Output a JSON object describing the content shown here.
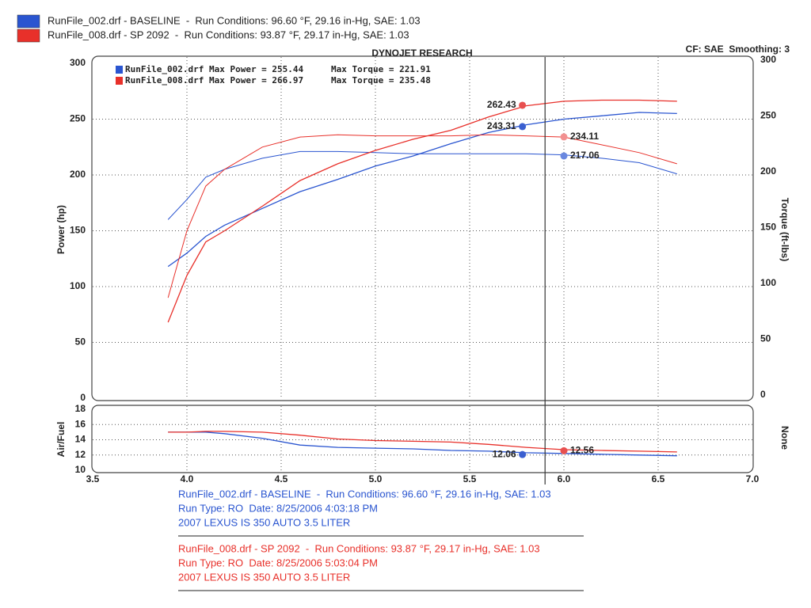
{
  "chart_data": [
    {
      "type": "dyno",
      "title": "DYNOJET RESEARCH",
      "subtitle": "CF: SAE  Smoothing: 3",
      "y_label": "Power (hp)",
      "y2_label": "Torque (ft-lbs)",
      "x": [
        3.9,
        4.0,
        4.1,
        4.2,
        4.4,
        4.6,
        4.8,
        5.0,
        5.2,
        5.4,
        5.6,
        5.8,
        6.0,
        6.2,
        6.4,
        6.6
      ],
      "xlim": [
        3.5,
        7.0
      ],
      "ylim": [
        0,
        300
      ],
      "yticks": [
        0,
        50,
        100,
        150,
        200,
        250,
        300
      ],
      "y2lim": [
        0,
        300
      ],
      "y2ticks": [
        0,
        50,
        100,
        150,
        200,
        250,
        300
      ],
      "grid": true,
      "cursor_x": 5.9,
      "series": [
        {
          "name": "RunFile_002.drf - BASELINE  -  Run Conditions: 96.60 °F, 29.16 in-Hg, SAE: 1.03",
          "color": "#2a55d0",
          "power": [
            118,
            130,
            145,
            155,
            170,
            185,
            196,
            208,
            217,
            228,
            238,
            245,
            250,
            253,
            256,
            255
          ],
          "torque": [
            160,
            178,
            198,
            205,
            215,
            221,
            221,
            220,
            219,
            219,
            219,
            219,
            218,
            215,
            211,
            201
          ],
          "max_power": "RunFile_002.drf Max Power = 255.44",
          "max_torque": "Max Torque = 221.91"
        },
        {
          "name": "RunFile_008.drf - SP 2092  -  Run Conditions: 93.87 °F, 29.17 in-Hg, SAE: 1.03",
          "color": "#e8302a",
          "power": [
            68,
            110,
            140,
            150,
            172,
            195,
            210,
            222,
            232,
            240,
            252,
            262,
            266,
            267,
            267,
            266
          ],
          "torque": [
            90,
            150,
            190,
            205,
            225,
            234,
            236,
            235,
            235,
            235,
            236,
            235,
            234,
            227,
            220,
            210
          ],
          "max_power": "RunFile_008.drf Max Power = 266.97",
          "max_torque": "Max Torque = 235.48"
        }
      ],
      "annotations": [
        {
          "x": 5.78,
          "value": 262.43,
          "color": "#e85050"
        },
        {
          "x": 5.78,
          "value": 243.31,
          "color": "#3a5fd0"
        },
        {
          "x": 6.0,
          "value": 234.11,
          "color": "#f29090"
        },
        {
          "x": 6.0,
          "value": 217.06,
          "color": "#6a88e0"
        }
      ]
    },
    {
      "type": "line",
      "y_label": "Air/Fuel",
      "y2_label": "None",
      "x": [
        3.9,
        4.0,
        4.1,
        4.2,
        4.4,
        4.6,
        4.8,
        5.0,
        5.2,
        5.4,
        5.6,
        5.8,
        6.0,
        6.2,
        6.4,
        6.6
      ],
      "xlim": [
        3.5,
        7.0
      ],
      "xticks": [
        3.5,
        {
          "value": 4,
          "label": "4.0"
        },
        4.5,
        {
          "value": 5,
          "label": "5.0"
        },
        5.5,
        {
          "value": 6,
          "label": "6.0"
        },
        6.5,
        {
          "value": 7,
          "label": "7.0"
        }
      ],
      "ylim": [
        10,
        18
      ],
      "yticks": [
        10,
        12,
        14,
        16,
        18
      ],
      "grid": true,
      "series": [
        {
          "color": "#2a55d0",
          "values": [
            15,
            15,
            15,
            14.8,
            14.2,
            13.3,
            13.0,
            12.9,
            12.8,
            12.6,
            12.5,
            12.3,
            12.2,
            12.1,
            12.0,
            11.9
          ]
        },
        {
          "color": "#e8302a",
          "values": [
            15,
            15,
            15.1,
            15.1,
            15.0,
            14.6,
            14.1,
            13.9,
            13.8,
            13.7,
            13.4,
            13.0,
            12.7,
            12.6,
            12.5,
            12.4
          ]
        }
      ],
      "annotations": [
        {
          "x": 5.78,
          "value": 12.06,
          "color": "#3a5fd0"
        },
        {
          "x": 6.0,
          "value": 12.56,
          "color": "#e85050"
        }
      ]
    }
  ],
  "run_info": [
    {
      "color": "#2a55d0",
      "lines": [
        "Run Type: RO  Date: 8/25/2006 4:03:18 PM",
        "2007 LEXUS IS 350 AUTO 3.5 LITER"
      ]
    },
    {
      "color": "#e8302a",
      "lines": [
        "Run Type: RO  Date: 8/25/2006 5:03:04 PM",
        "2007 LEXUS IS 350 AUTO 3.5 LITER"
      ]
    }
  ]
}
